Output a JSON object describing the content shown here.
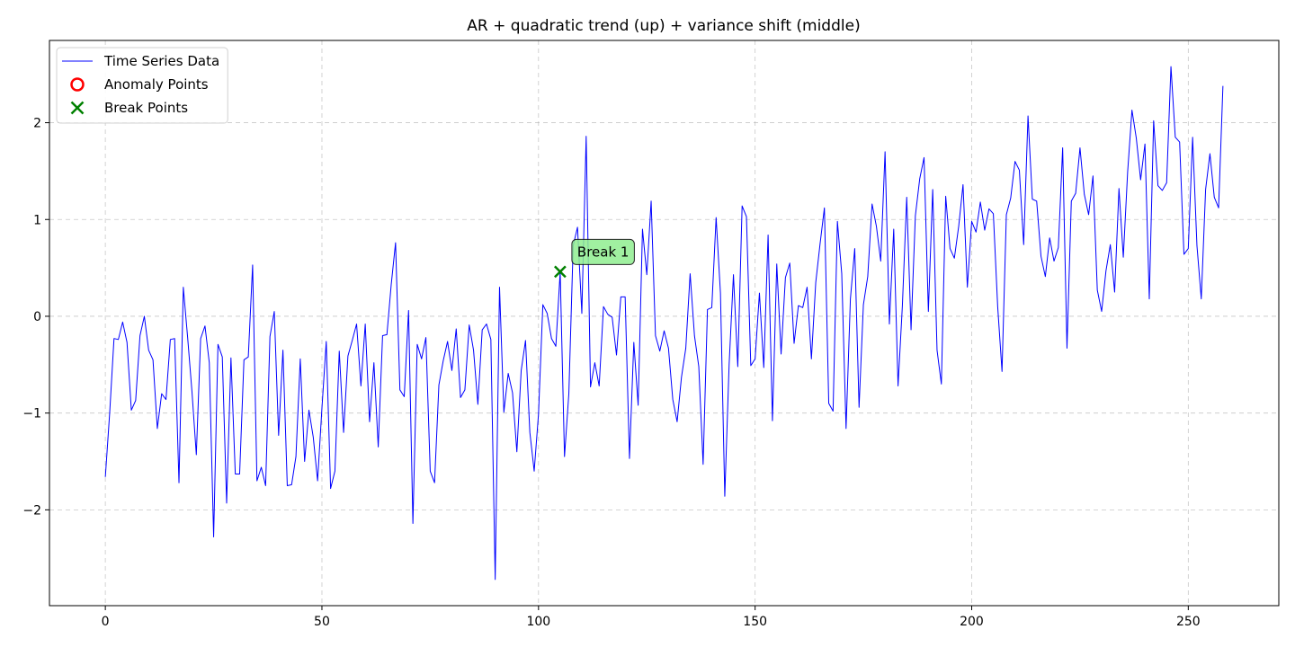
{
  "chart_data": {
    "type": "line",
    "title": "AR + quadratic trend (up) + variance shift (middle)",
    "xlabel": "",
    "ylabel": "",
    "xlim": [
      -12.9,
      270.9
    ],
    "ylim": [
      -2.99,
      2.85
    ],
    "xticks": [
      0,
      50,
      100,
      150,
      200,
      250
    ],
    "yticks": [
      -2,
      -1,
      0,
      1,
      2
    ],
    "ytick_labels": [
      "−2",
      "−1",
      "0",
      "1",
      "2"
    ],
    "grid": true,
    "legend_position": "top-left",
    "series": [
      {
        "name": "Time Series Data",
        "color": "#0000ff",
        "x_start": 0,
        "values": [
          -1.66,
          -1.0,
          -0.23,
          -0.24,
          -0.06,
          -0.27,
          -0.97,
          -0.87,
          -0.2,
          0.0,
          -0.35,
          -0.45,
          -1.16,
          -0.8,
          -0.86,
          -0.24,
          -0.23,
          -1.72,
          0.3,
          -0.22,
          -0.78,
          -1.43,
          -0.23,
          -0.1,
          -0.48,
          -2.28,
          -0.29,
          -0.42,
          -1.93,
          -0.43,
          -1.63,
          -1.63,
          -0.45,
          -0.42,
          0.53,
          -1.7,
          -1.56,
          -1.75,
          -0.21,
          0.05,
          -1.23,
          -0.35,
          -1.75,
          -1.74,
          -1.45,
          -0.44,
          -1.5,
          -0.97,
          -1.25,
          -1.7,
          -0.95,
          -0.26,
          -1.78,
          -1.6,
          -0.36,
          -1.2,
          -0.41,
          -0.25,
          -0.08,
          -0.72,
          -0.08,
          -1.09,
          -0.48,
          -1.35,
          -0.2,
          -0.19,
          0.33,
          0.76,
          -0.76,
          -0.83,
          0.06,
          -2.14,
          -0.29,
          -0.44,
          -0.22,
          -1.6,
          -1.72,
          -0.71,
          -0.46,
          -0.26,
          -0.56,
          -0.13,
          -0.84,
          -0.76,
          -0.09,
          -0.35,
          -0.91,
          -0.14,
          -0.08,
          -0.24,
          -2.72,
          0.3,
          -0.99,
          -0.59,
          -0.79,
          -1.4,
          -0.56,
          -0.25,
          -1.2,
          -1.6,
          -1.01,
          0.12,
          0.03,
          -0.23,
          -0.31,
          0.46,
          -1.45,
          -0.8,
          0.73,
          0.92,
          0.03,
          1.86,
          -0.73,
          -0.48,
          -0.72,
          0.1,
          0.02,
          -0.01,
          -0.4,
          0.2,
          0.2,
          -1.47,
          -0.27,
          -0.92,
          0.9,
          0.43,
          1.19,
          -0.2,
          -0.36,
          -0.15,
          -0.33,
          -0.86,
          -1.09,
          -0.63,
          -0.33,
          0.44,
          -0.2,
          -0.52,
          -1.53,
          0.07,
          0.09,
          1.02,
          0.24,
          -1.86,
          -0.5,
          0.43,
          -0.52,
          1.14,
          1.03,
          -0.51,
          -0.44,
          0.24,
          -0.53,
          0.84,
          -1.08,
          0.54,
          -0.39,
          0.4,
          0.55,
          -0.28,
          0.11,
          0.09,
          0.3,
          -0.44,
          0.35,
          0.75,
          1.12,
          -0.9,
          -0.98,
          0.98,
          0.44,
          -1.16,
          0.18,
          0.7,
          -0.94,
          0.12,
          0.41,
          1.16,
          0.93,
          0.57,
          1.7,
          -0.08,
          0.9,
          -0.72,
          0.11,
          1.23,
          -0.14,
          1.04,
          1.42,
          1.64,
          0.05,
          1.31,
          -0.35,
          -0.7,
          1.24,
          0.7,
          0.6,
          0.93,
          1.36,
          0.3,
          0.98,
          0.87,
          1.18,
          0.89,
          1.11,
          1.06,
          0.1,
          -0.57,
          1.05,
          1.22,
          1.6,
          1.51,
          0.74,
          2.07,
          1.21,
          1.19,
          0.62,
          0.41,
          0.81,
          0.57,
          0.71,
          1.74,
          -0.33,
          1.19,
          1.27,
          1.74,
          1.26,
          1.05,
          1.45,
          0.27,
          0.05,
          0.47,
          0.74,
          0.25,
          1.32,
          0.61,
          1.49,
          2.13,
          1.84,
          1.41,
          1.78,
          0.18,
          2.02,
          1.35,
          1.3,
          1.38,
          2.58,
          1.85,
          1.8,
          0.64,
          0.7,
          1.85,
          0.73,
          0.18,
          1.31,
          1.68,
          1.23,
          1.12,
          2.38
        ]
      },
      {
        "name": "Anomaly Points",
        "color": "#ff0000",
        "marker": "open-circle",
        "points": []
      },
      {
        "name": "Break Points",
        "color": "#008000",
        "marker": "x",
        "points": [
          {
            "x": 105,
            "y": 0.46
          }
        ]
      }
    ],
    "legend": [
      {
        "label": "Time Series Data",
        "style": "line",
        "color": "#0000ff"
      },
      {
        "label": "Anomaly Points",
        "style": "open-circle",
        "color": "#ff0000"
      },
      {
        "label": "Break Points",
        "style": "x",
        "color": "#008000"
      }
    ],
    "annotations": [
      {
        "text": "Break 1",
        "x": 105,
        "y": 0.46,
        "box_color": "#90ee90"
      }
    ]
  }
}
